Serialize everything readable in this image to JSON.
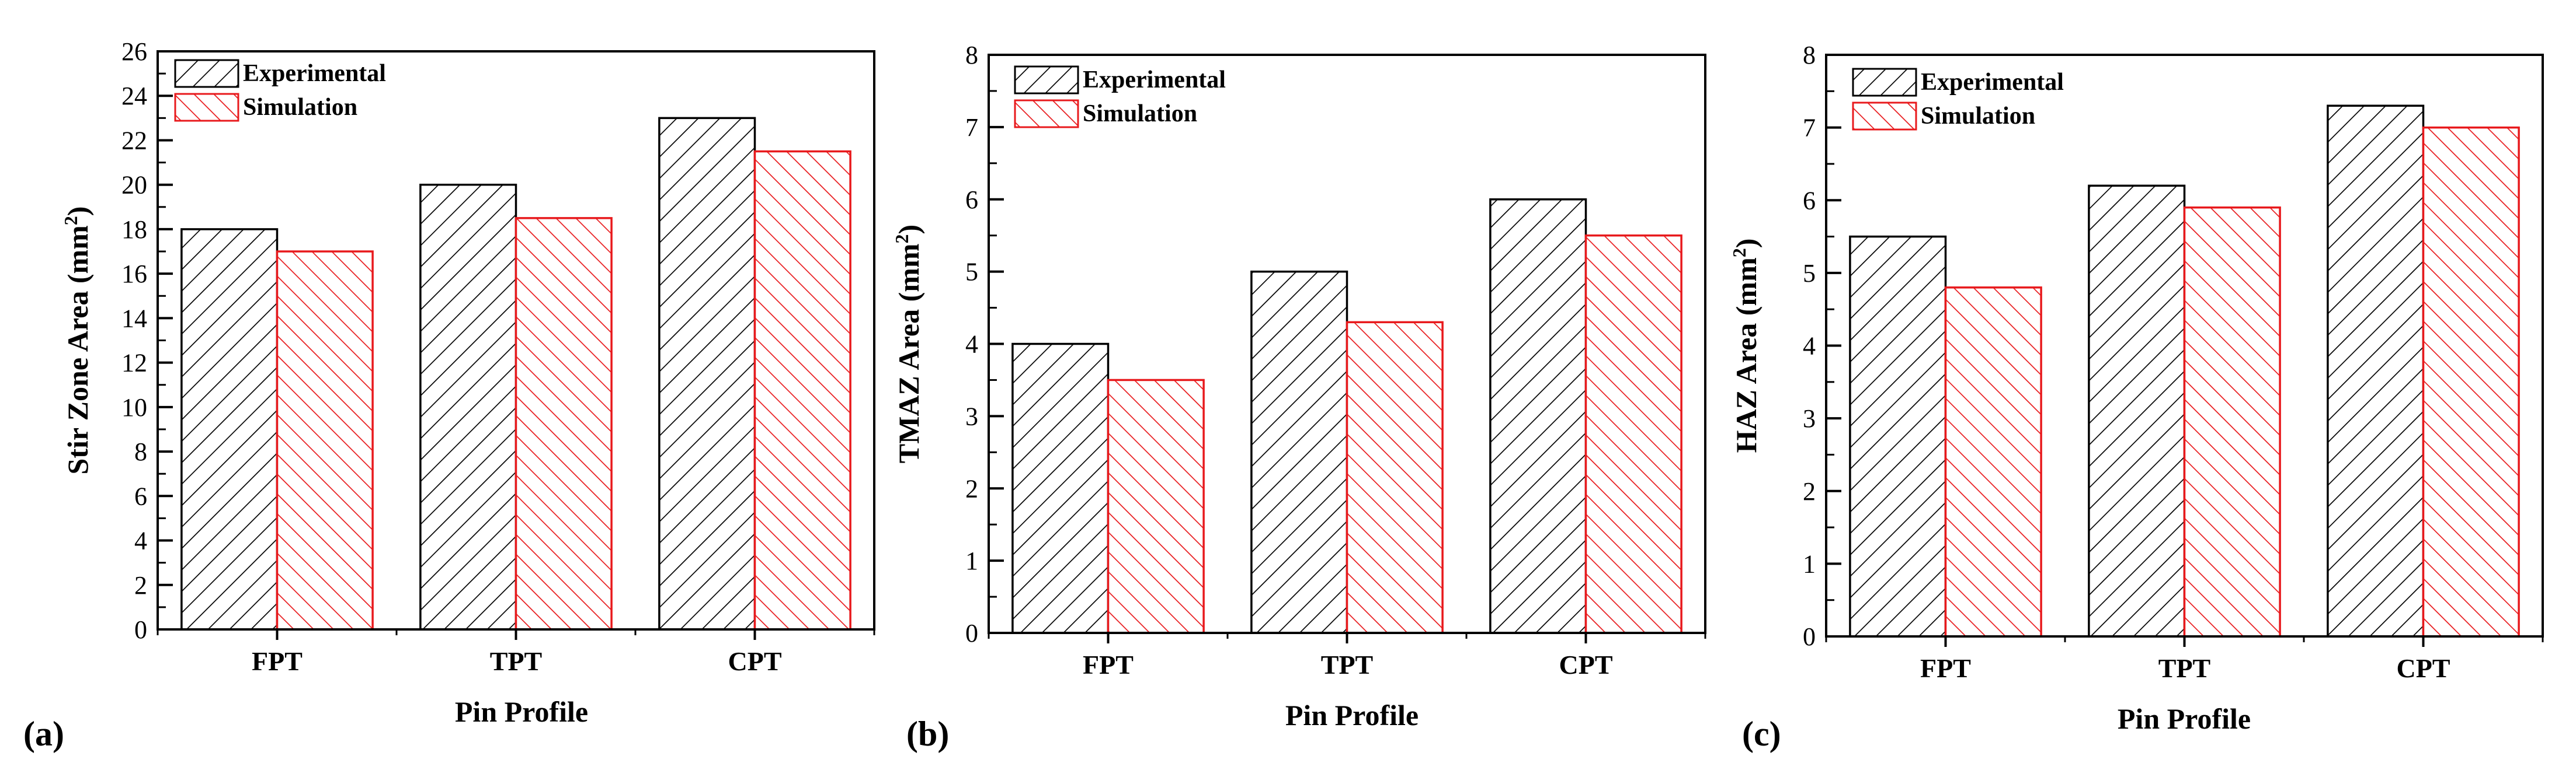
{
  "colors": {
    "experimental": "#000000",
    "simulation": "#e8191c",
    "background": "#ffffff"
  },
  "legend_icons": [
    "hatch-diagonal-black",
    "hatch-diagonal-red"
  ],
  "chart_data": [
    {
      "type": "bar",
      "panel_label": "(a)",
      "title": "",
      "xlabel": "Pin Profile",
      "ylabel_main": "Stir Zone Area (mm",
      "ylabel_sup": "2",
      "ylabel_close": ")",
      "categories": [
        "FPT",
        "TPT",
        "CPT"
      ],
      "ylim": [
        0,
        26
      ],
      "yticks": [
        0,
        2,
        4,
        6,
        8,
        10,
        12,
        14,
        16,
        18,
        20,
        22,
        24,
        26
      ],
      "yminor_step": 1,
      "series": [
        {
          "name": "Experimental",
          "values": [
            18,
            20,
            23
          ]
        },
        {
          "name": "Simulation",
          "values": [
            17,
            18.5,
            21.5
          ]
        }
      ],
      "legend": "top-left"
    },
    {
      "type": "bar",
      "panel_label": "(b)",
      "title": "",
      "xlabel": "Pin Profile",
      "ylabel_main": "TMAZ Area (mm",
      "ylabel_sup": "2",
      "ylabel_close": ")",
      "categories": [
        "FPT",
        "TPT",
        "CPT"
      ],
      "ylim": [
        0,
        8
      ],
      "yticks": [
        0,
        1,
        2,
        3,
        4,
        5,
        6,
        7,
        8
      ],
      "yminor_step": 0.5,
      "series": [
        {
          "name": "Experimental",
          "values": [
            4,
            5,
            6
          ]
        },
        {
          "name": "Simulation",
          "values": [
            3.5,
            4.3,
            5.5
          ]
        }
      ],
      "legend": "top-left"
    },
    {
      "type": "bar",
      "panel_label": "(c)",
      "title": "",
      "xlabel": "Pin Profile",
      "ylabel_main": "HAZ Area (mm",
      "ylabel_sup": "2",
      "ylabel_close": ")",
      "categories": [
        "FPT",
        "TPT",
        "CPT"
      ],
      "ylim": [
        0,
        8
      ],
      "yticks": [
        0,
        1,
        2,
        3,
        4,
        5,
        6,
        7,
        8
      ],
      "yminor_step": 0.5,
      "series": [
        {
          "name": "Experimental",
          "values": [
            5.5,
            6.2,
            7.3
          ]
        },
        {
          "name": "Simulation",
          "values": [
            4.8,
            5.9,
            7.0
          ]
        }
      ],
      "legend": "top-left"
    }
  ]
}
